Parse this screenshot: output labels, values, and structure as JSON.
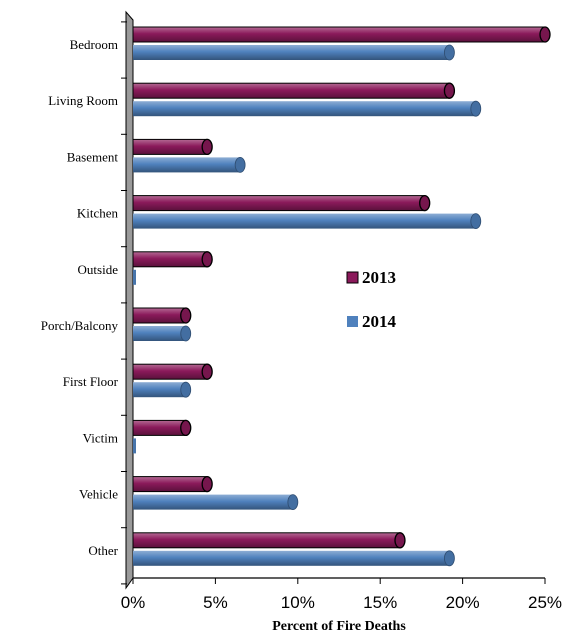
{
  "chart_data": {
    "type": "bar",
    "orientation": "horizontal",
    "style": "3d-cylinder",
    "categories": [
      "Bedroom",
      "Living Room",
      "Basement",
      "Kitchen",
      "Outside",
      "Porch/Balcony",
      "First Floor",
      "Victim",
      "Vehicle",
      "Other"
    ],
    "series": [
      {
        "name": "2013",
        "color": "#8B1A5B",
        "values": [
          25,
          19.2,
          4.5,
          17.7,
          4.5,
          3.2,
          4.5,
          3.2,
          4.5,
          16.2
        ]
      },
      {
        "name": "2014",
        "color": "#4F81BD",
        "values": [
          19.2,
          20.8,
          6.5,
          20.8,
          0,
          3.2,
          3.2,
          0,
          9.7,
          19.2
        ]
      }
    ],
    "xlabel": "Percent of Fire Deaths",
    "ylabel": "",
    "xlim": [
      0,
      25
    ],
    "x_ticks": [
      "0%",
      "5%",
      "10%",
      "15%",
      "20%",
      "25%"
    ],
    "legend_position": "center-right",
    "grid": false
  }
}
